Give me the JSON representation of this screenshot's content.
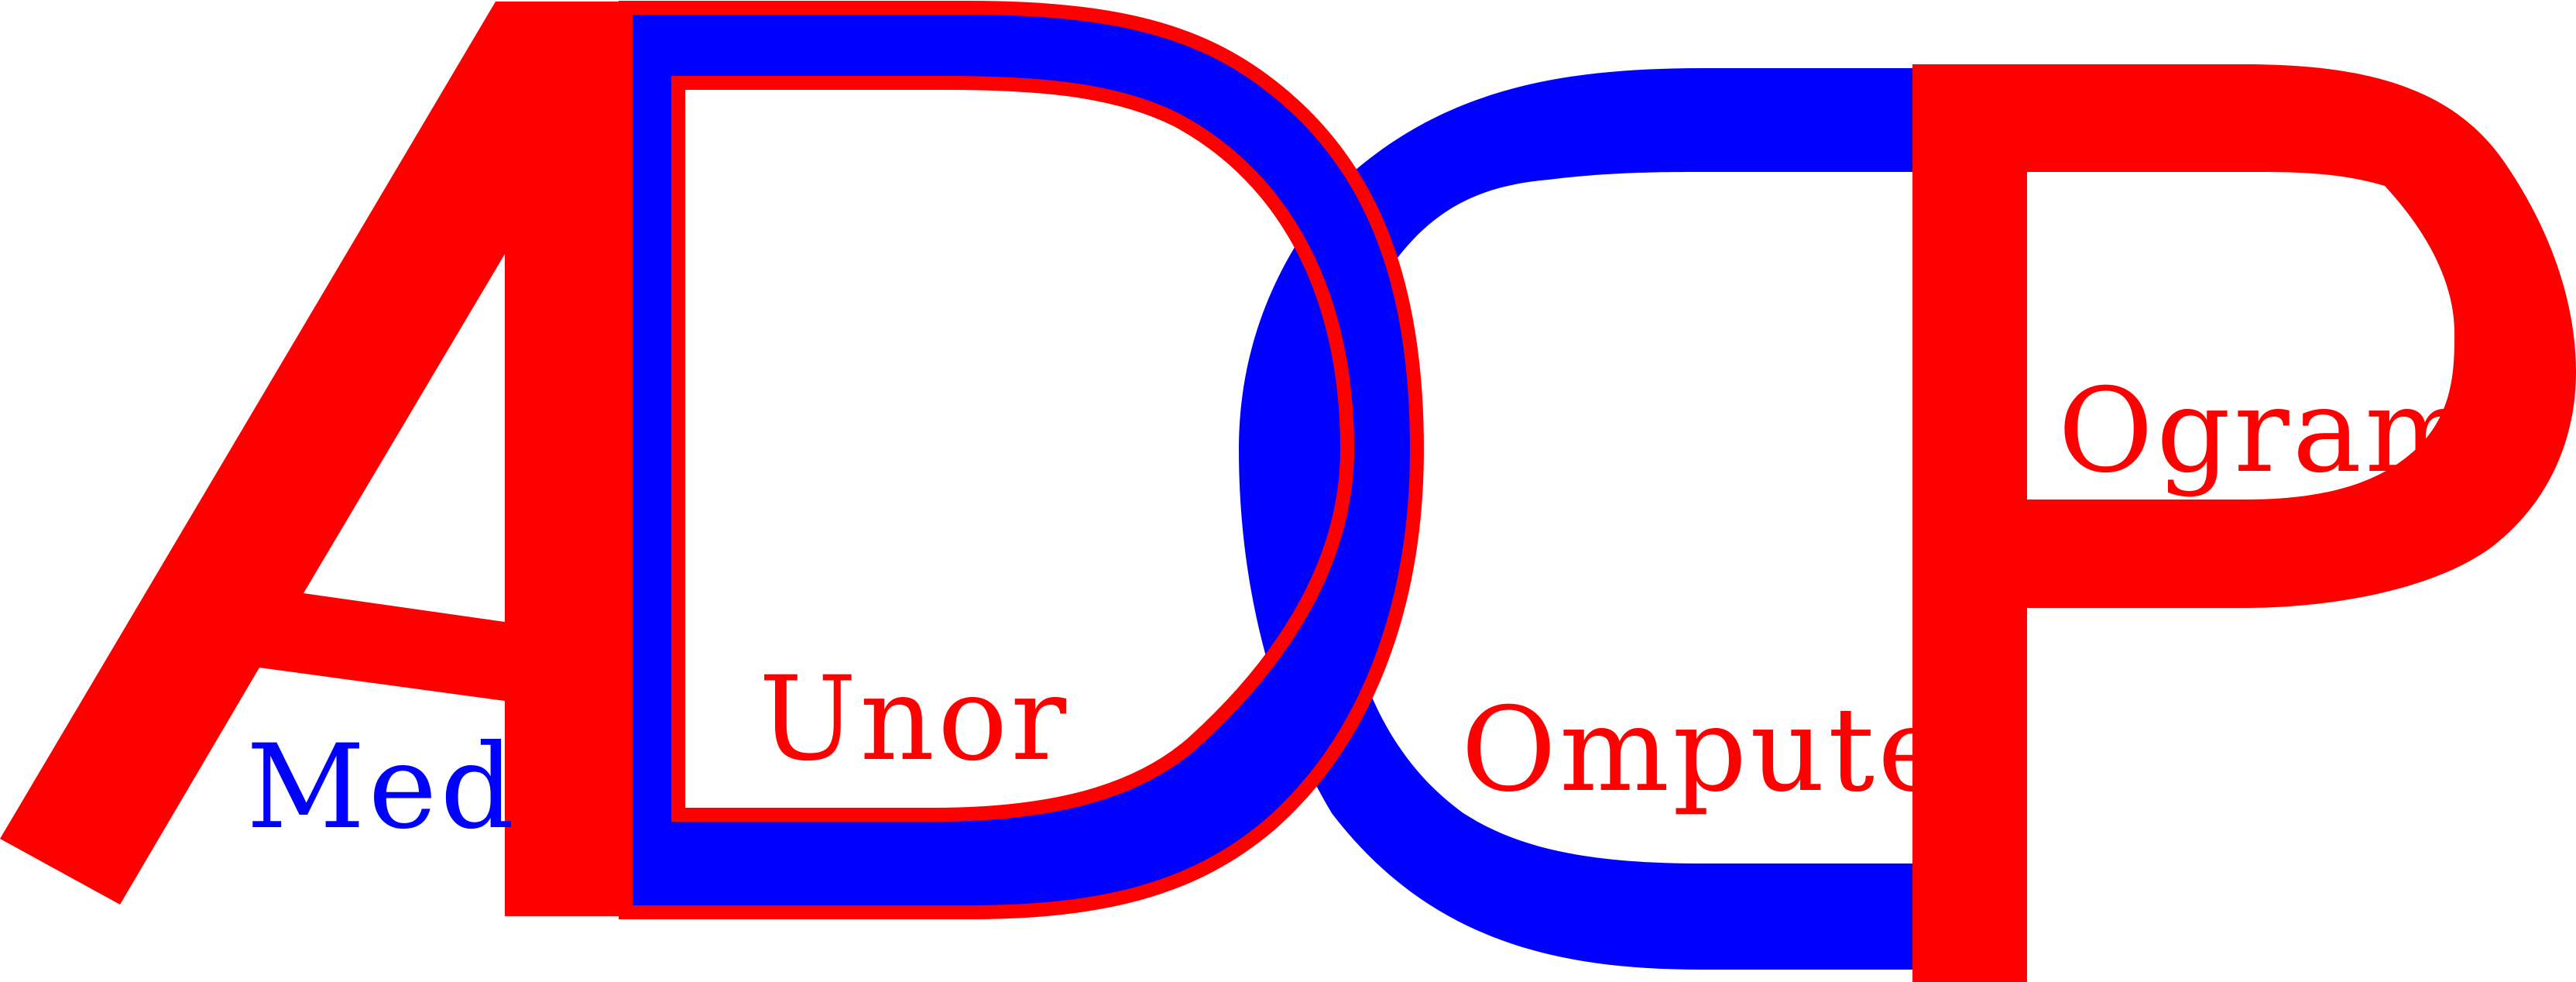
{
  "logo": {
    "letters": [
      "A",
      "D",
      "C",
      "P"
    ],
    "words": {
      "a": "Med",
      "d": "Unor",
      "c": "Omputer",
      "p": "Ogram"
    },
    "colors": {
      "red": "#FF0000",
      "blue": "#0000FF",
      "background": "#FFFFFF"
    }
  }
}
